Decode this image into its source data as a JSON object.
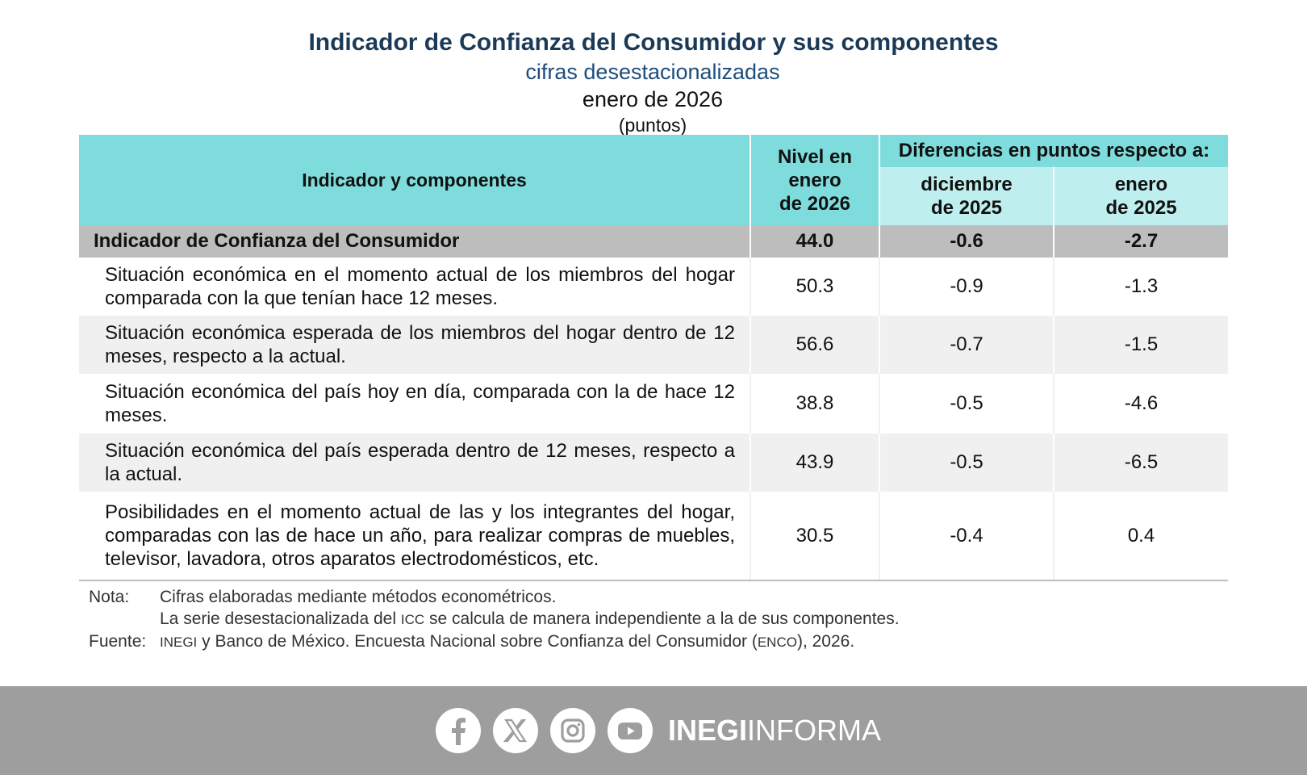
{
  "header": {
    "title": "Indicador de Confianza del Consumidor y sus componentes",
    "subtitle": "cifras desestacionalizadas",
    "period": "enero de 2026",
    "units": "(puntos)"
  },
  "table": {
    "col_indicator": "Indicador y componentes",
    "col_level": [
      "Nivel en",
      "enero",
      "de 2026"
    ],
    "col_diff_group": "Diferencias en puntos respecto a:",
    "col_diff_dec": [
      "diciembre",
      "de 2025"
    ],
    "col_diff_jan": [
      "enero",
      "de 2025"
    ],
    "main_row": {
      "label": "Indicador de Confianza del Consumidor",
      "level": "44.0",
      "diff_dec": "-0.6",
      "diff_jan": "-2.7"
    },
    "rows": [
      {
        "label": "Situación económica en el momento actual de los miembros del hogar comparada con la que tenían hace 12 meses.",
        "level": "50.3",
        "diff_dec": "-0.9",
        "diff_jan": "-1.3"
      },
      {
        "label": "Situación económica esperada de los miembros del hogar dentro de 12 meses, respecto a la actual.",
        "level": "56.6",
        "diff_dec": "-0.7",
        "diff_jan": "-1.5"
      },
      {
        "label": "Situación económica del país hoy en día, comparada con la de hace 12 meses.",
        "level": "38.8",
        "diff_dec": "-0.5",
        "diff_jan": "-4.6"
      },
      {
        "label": "Situación económica del país esperada dentro de 12 meses, respecto a la actual.",
        "level": "43.9",
        "diff_dec": "-0.5",
        "diff_jan": "-6.5"
      },
      {
        "label": "Posibilidades en el momento actual de las y los integrantes del hogar, comparadas con las de hace un año, para realizar compras de muebles, televisor, lavadora, otros aparatos electrodomésticos, etc.",
        "level": "30.5",
        "diff_dec": "-0.4",
        "diff_jan": "0.4"
      }
    ]
  },
  "notes": {
    "nota_key": "Nota:",
    "nota_line1": "Cifras elaboradas mediante métodos econométricos.",
    "nota_line2_a": "La serie desestacionalizada del",
    "nota_line2_icc": "ICC",
    "nota_line2_b": "se calcula de manera independiente a la de sus componentes.",
    "fuente_key": "Fuente:",
    "fuente_inegi": "INEGI",
    "fuente_a": "y Banco de México. Encuesta Nacional sobre Confianza del Consumidor (",
    "fuente_enco": "ENCO",
    "fuente_b": "), 2026."
  },
  "footer": {
    "brand_bold": "INEGI",
    "brand_light": "INFORMA",
    "icons": [
      "facebook-icon",
      "x-icon",
      "instagram-icon",
      "youtube-icon"
    ]
  }
}
